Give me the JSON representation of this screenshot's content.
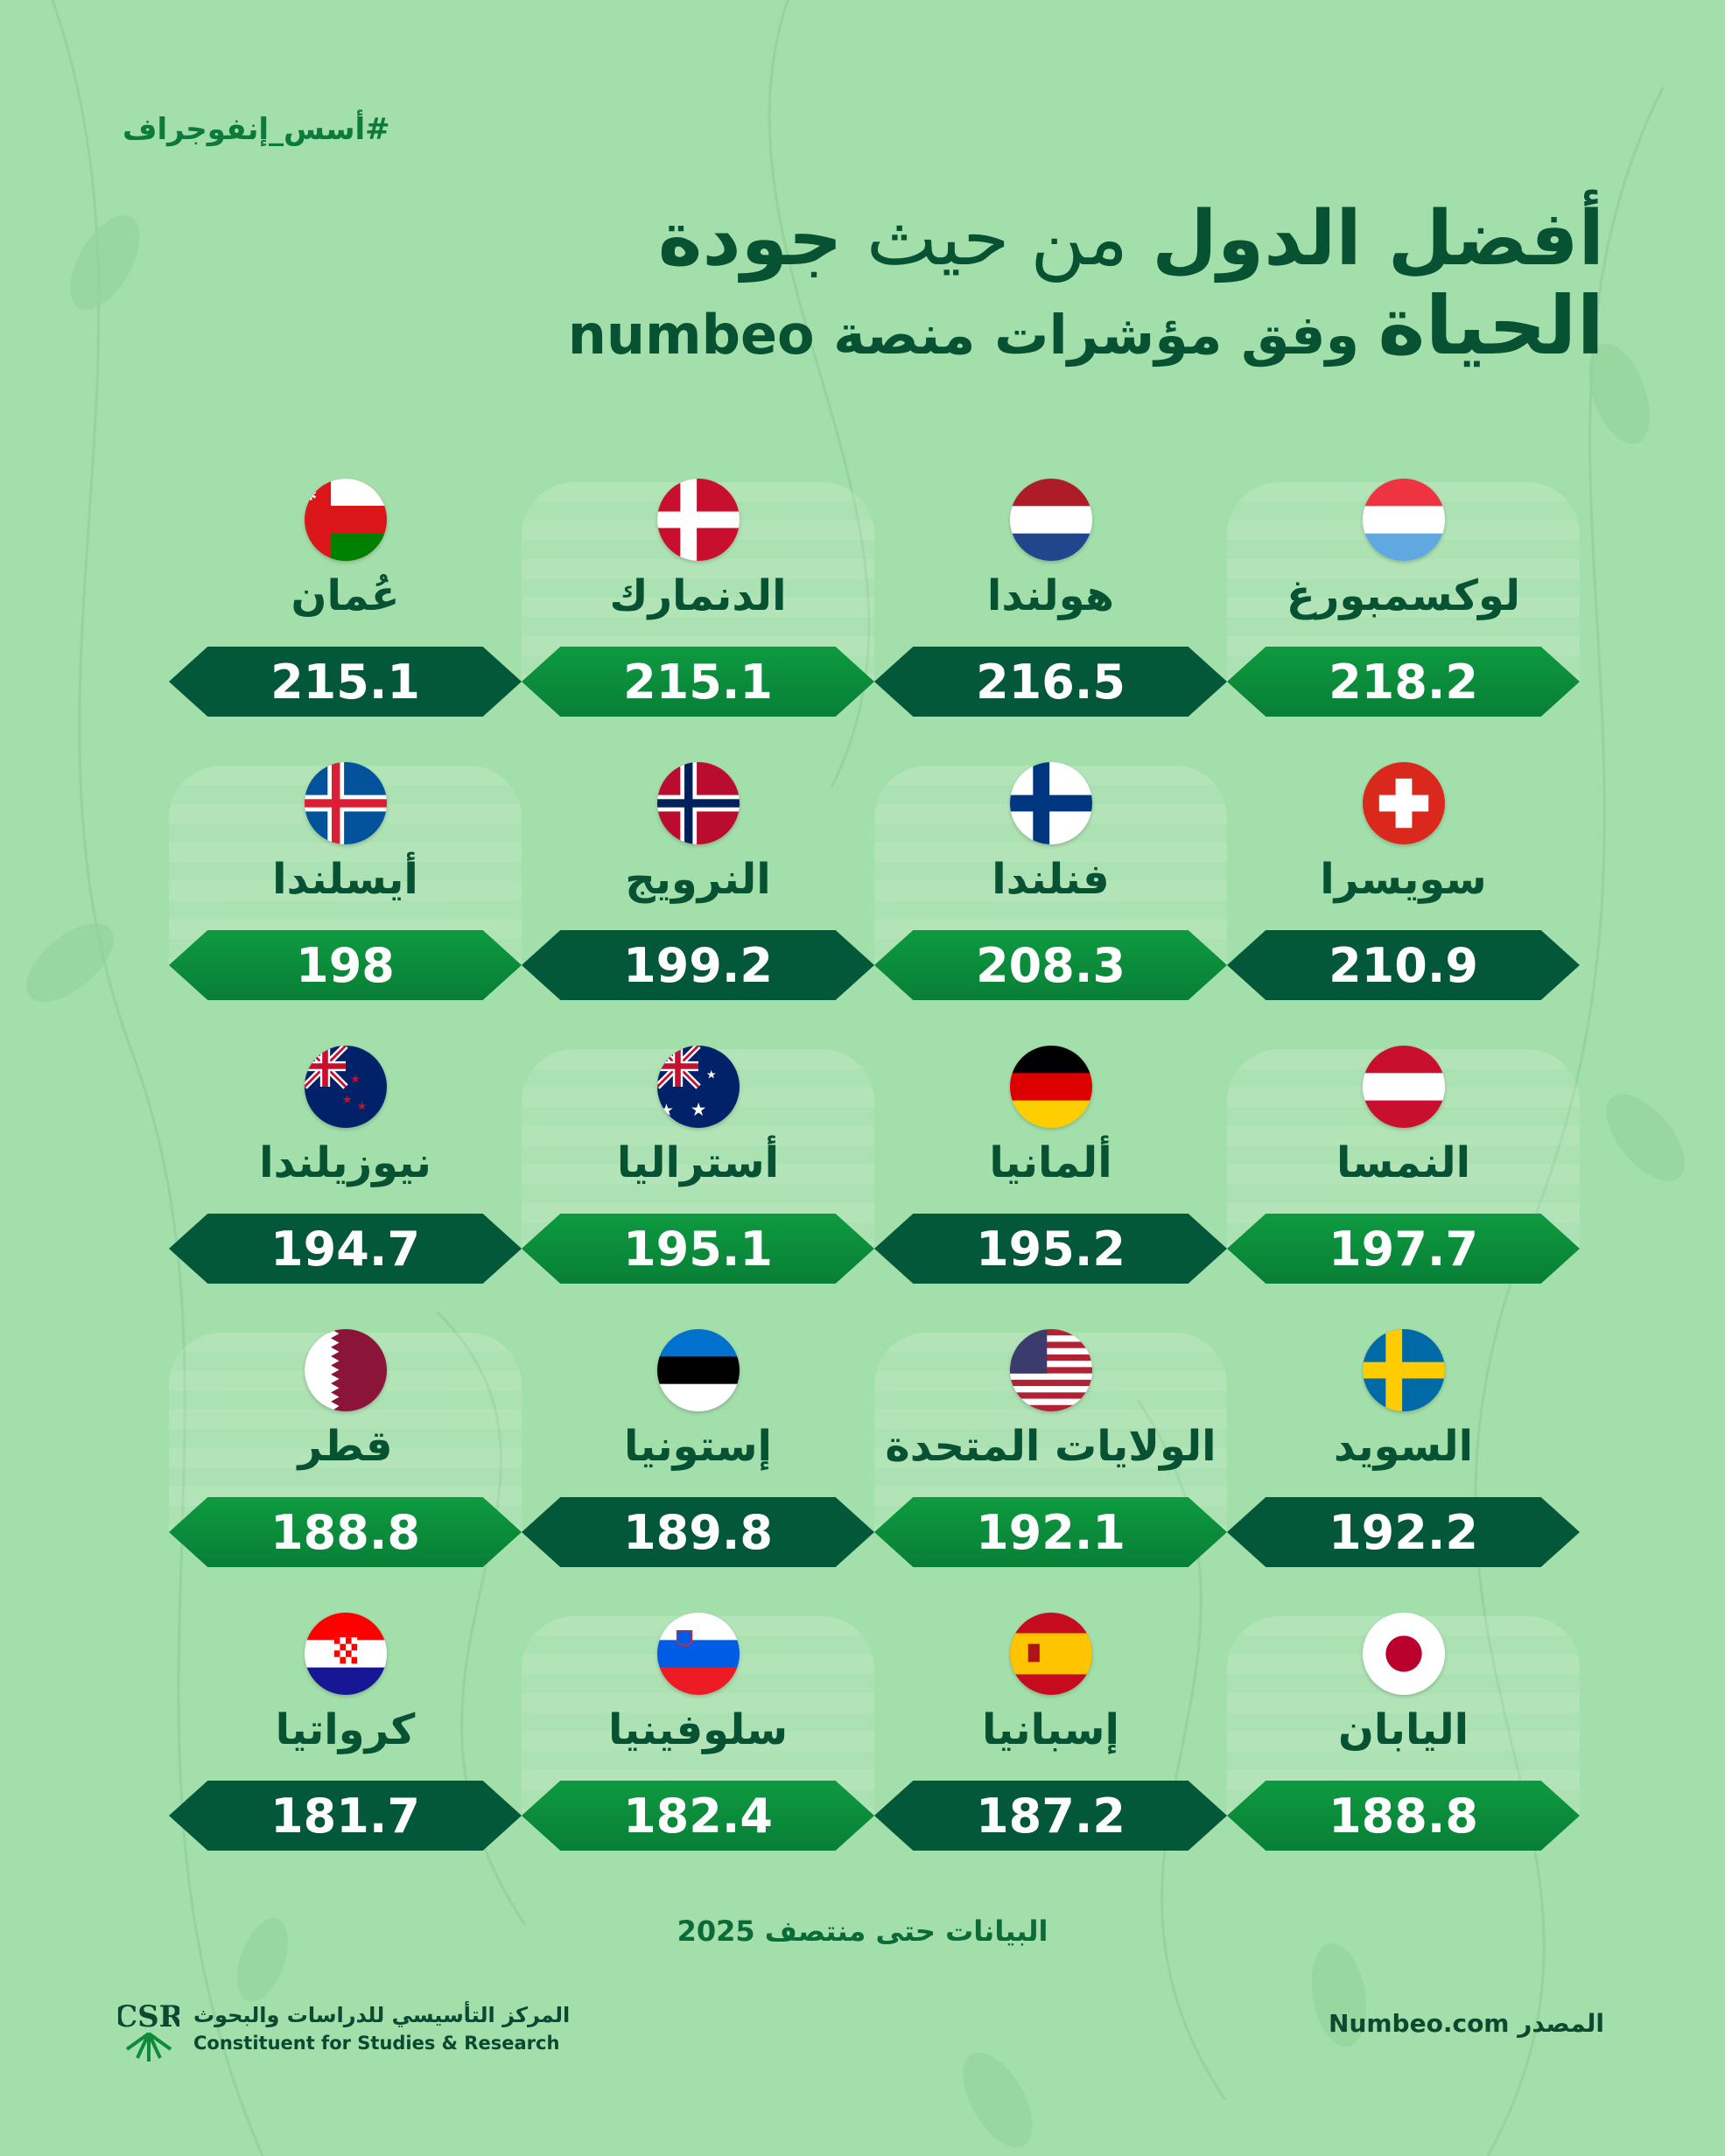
{
  "hashtag": "#أسس_إنفوجراف",
  "title": {
    "part1": "أفضل الدول",
    "part2": "من حيث",
    "part3": "جودة",
    "part4": "الحياة",
    "part5": "وفق مؤشرات منصة numbeo"
  },
  "countries": [
    {
      "name": "لوكسمبورغ",
      "value": "218.2",
      "flag": "luxembourg"
    },
    {
      "name": "هولندا",
      "value": "216.5",
      "flag": "netherlands"
    },
    {
      "name": "الدنمارك",
      "value": "215.1",
      "flag": "denmark"
    },
    {
      "name": "عُمان",
      "value": "215.1",
      "flag": "oman"
    },
    {
      "name": "سويسرا",
      "value": "210.9",
      "flag": "switzerland"
    },
    {
      "name": "فنلندا",
      "value": "208.3",
      "flag": "finland"
    },
    {
      "name": "النرويج",
      "value": "199.2",
      "flag": "norway"
    },
    {
      "name": "أيسلندا",
      "value": "198",
      "flag": "iceland"
    },
    {
      "name": "النمسا",
      "value": "197.7",
      "flag": "austria"
    },
    {
      "name": "ألمانيا",
      "value": "195.2",
      "flag": "germany"
    },
    {
      "name": "أستراليا",
      "value": "195.1",
      "flag": "australia"
    },
    {
      "name": "نيوزيلندا",
      "value": "194.7",
      "flag": "new-zealand"
    },
    {
      "name": "السويد",
      "value": "192.2",
      "flag": "sweden"
    },
    {
      "name": "الولايات المتحدة",
      "value": "192.1",
      "flag": "united-states"
    },
    {
      "name": "إستونيا",
      "value": "189.8",
      "flag": "estonia"
    },
    {
      "name": "قطر",
      "value": "188.8",
      "flag": "qatar"
    },
    {
      "name": "اليابان",
      "value": "188.8",
      "flag": "japan"
    },
    {
      "name": "إسبانيا",
      "value": "187.2",
      "flag": "spain"
    },
    {
      "name": "سلوفينيا",
      "value": "182.4",
      "flag": "slovenia"
    },
    {
      "name": "كرواتيا",
      "value": "181.7",
      "flag": "croatia"
    }
  ],
  "note": "البيانات حتى منتصف 2025",
  "logo": {
    "mark": "CSR",
    "arabic": "المركز التأسيسي للدراسات والبحوث",
    "english": "Constituent for Studies & Research"
  },
  "source": "المصدر  Numbeo.com",
  "colors": {
    "background": "#a3dfaa",
    "dark_badge": "#03583a",
    "bright_badge": "#0e9a40",
    "title": "#075233"
  }
}
